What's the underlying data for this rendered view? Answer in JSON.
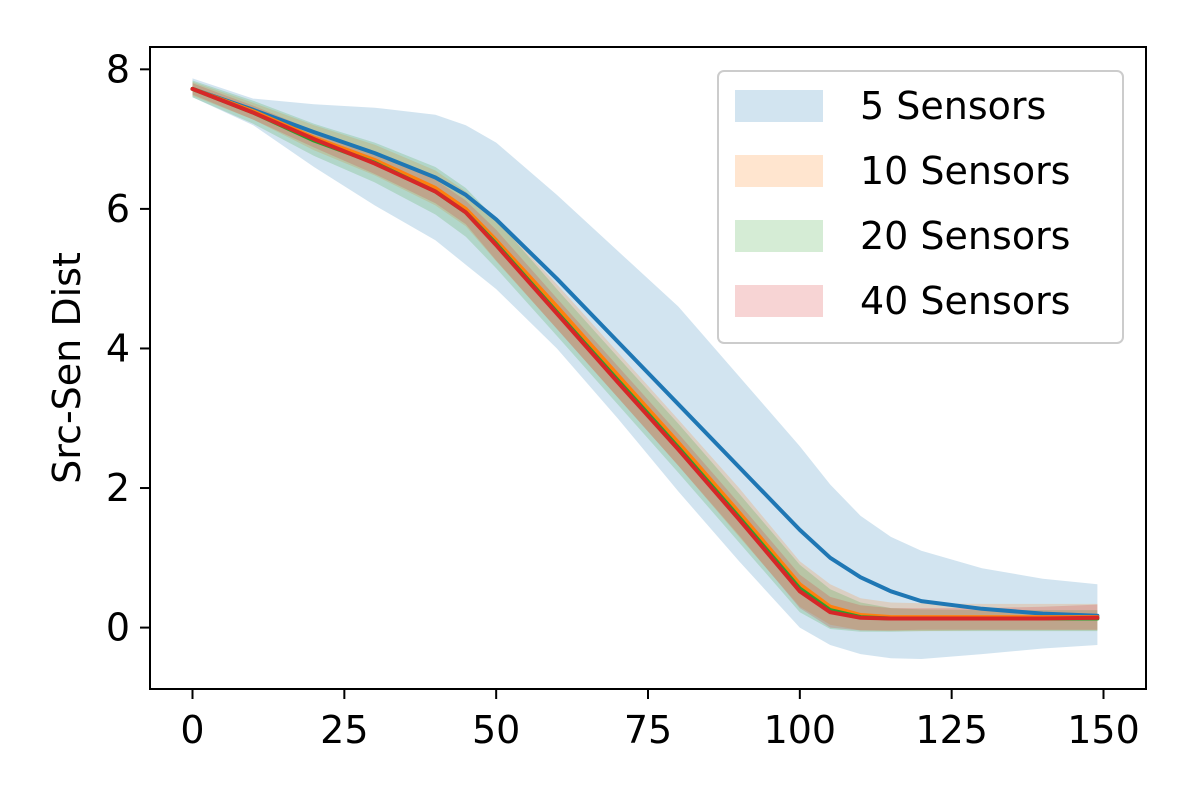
{
  "chart_data": {
    "type": "line",
    "title": "",
    "xlabel": "",
    "ylabel": "Src-Sen Dist",
    "xlim": [
      -7,
      157
    ],
    "ylim": [
      -0.88,
      8.32
    ],
    "xticks": [
      0,
      25,
      50,
      75,
      100,
      125,
      150
    ],
    "yticks": [
      0,
      2,
      4,
      6,
      8
    ],
    "grid": false,
    "legend_position": "top-right",
    "series": [
      {
        "name": "5 Sensors",
        "color": "#1f77b4",
        "x": [
          0,
          10,
          20,
          30,
          40,
          45,
          50,
          60,
          70,
          80,
          90,
          100,
          105,
          110,
          115,
          120,
          130,
          140,
          149
        ],
        "mean": [
          7.72,
          7.42,
          7.1,
          6.8,
          6.45,
          6.2,
          5.85,
          5.0,
          4.1,
          3.2,
          2.3,
          1.4,
          1.0,
          0.72,
          0.52,
          0.38,
          0.27,
          0.2,
          0.17
        ],
        "upper": [
          7.87,
          7.58,
          7.5,
          7.45,
          7.35,
          7.2,
          6.95,
          6.2,
          5.4,
          4.6,
          3.6,
          2.6,
          2.05,
          1.6,
          1.3,
          1.1,
          0.85,
          0.7,
          0.62
        ],
        "lower": [
          7.6,
          7.2,
          6.6,
          6.05,
          5.55,
          5.2,
          4.85,
          4.0,
          3.0,
          1.95,
          0.95,
          0.0,
          -0.25,
          -0.38,
          -0.44,
          -0.45,
          -0.38,
          -0.3,
          -0.25
        ]
      },
      {
        "name": "10 Sensors",
        "color": "#ff7f0e",
        "x": [
          0,
          10,
          20,
          30,
          40,
          45,
          50,
          60,
          70,
          80,
          90,
          100,
          105,
          110,
          115,
          120,
          130,
          140,
          149
        ],
        "mean": [
          7.72,
          7.4,
          7.02,
          6.7,
          6.3,
          6.0,
          5.55,
          4.6,
          3.62,
          2.65,
          1.65,
          0.62,
          0.3,
          0.18,
          0.15,
          0.15,
          0.15,
          0.15,
          0.15
        ],
        "upper": [
          7.82,
          7.52,
          7.2,
          6.92,
          6.55,
          6.25,
          5.85,
          4.92,
          3.95,
          2.98,
          2.0,
          0.95,
          0.62,
          0.42,
          0.36,
          0.35,
          0.34,
          0.34,
          0.34
        ],
        "lower": [
          7.62,
          7.28,
          6.84,
          6.48,
          6.05,
          5.75,
          5.25,
          4.28,
          3.3,
          2.32,
          1.3,
          0.3,
          0.04,
          -0.04,
          -0.05,
          -0.05,
          -0.04,
          -0.04,
          -0.04
        ]
      },
      {
        "name": "20 Sensors",
        "color": "#2ca02c",
        "x": [
          0,
          10,
          20,
          30,
          40,
          45,
          50,
          60,
          70,
          80,
          90,
          100,
          105,
          110,
          115,
          120,
          130,
          140,
          149
        ],
        "mean": [
          7.72,
          7.38,
          6.98,
          6.66,
          6.25,
          5.95,
          5.5,
          4.52,
          3.55,
          2.58,
          1.58,
          0.56,
          0.25,
          0.15,
          0.13,
          0.13,
          0.13,
          0.13,
          0.13
        ],
        "upper": [
          7.84,
          7.55,
          7.22,
          6.95,
          6.6,
          6.3,
          5.85,
          4.85,
          3.88,
          2.92,
          1.92,
          0.9,
          0.55,
          0.36,
          0.28,
          0.26,
          0.25,
          0.25,
          0.25
        ],
        "lower": [
          7.6,
          7.22,
          6.76,
          6.38,
          5.92,
          5.6,
          5.15,
          4.18,
          3.2,
          2.22,
          1.22,
          0.22,
          -0.02,
          -0.06,
          -0.06,
          -0.05,
          -0.05,
          -0.05,
          -0.05
        ]
      },
      {
        "name": "40 Sensors",
        "color": "#d62728",
        "x": [
          0,
          10,
          20,
          30,
          40,
          45,
          50,
          60,
          70,
          80,
          90,
          100,
          105,
          110,
          115,
          120,
          130,
          140,
          149
        ],
        "mean": [
          7.72,
          7.38,
          7.0,
          6.65,
          6.25,
          5.95,
          5.48,
          4.5,
          3.52,
          2.55,
          1.55,
          0.52,
          0.22,
          0.14,
          0.13,
          0.13,
          0.13,
          0.13,
          0.14
        ],
        "upper": [
          7.8,
          7.48,
          7.12,
          6.8,
          6.42,
          6.12,
          5.7,
          4.72,
          3.75,
          2.78,
          1.78,
          0.76,
          0.44,
          0.32,
          0.28,
          0.28,
          0.28,
          0.3,
          0.33
        ],
        "lower": [
          7.64,
          7.28,
          6.88,
          6.5,
          6.08,
          5.78,
          5.26,
          4.28,
          3.3,
          2.32,
          1.32,
          0.28,
          0.0,
          -0.04,
          -0.04,
          -0.03,
          -0.03,
          -0.03,
          -0.03
        ]
      }
    ]
  }
}
